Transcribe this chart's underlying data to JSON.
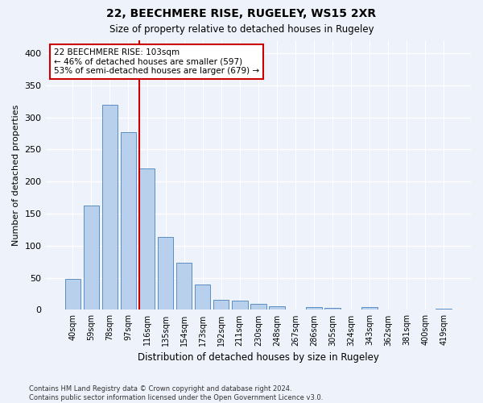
{
  "title_line1": "22, BEECHMERE RISE, RUGELEY, WS15 2XR",
  "title_line2": "Size of property relative to detached houses in Rugeley",
  "xlabel": "Distribution of detached houses by size in Rugeley",
  "ylabel": "Number of detached properties",
  "categories": [
    "40sqm",
    "59sqm",
    "78sqm",
    "97sqm",
    "116sqm",
    "135sqm",
    "154sqm",
    "173sqm",
    "192sqm",
    "211sqm",
    "230sqm",
    "248sqm",
    "267sqm",
    "286sqm",
    "305sqm",
    "324sqm",
    "343sqm",
    "362sqm",
    "381sqm",
    "400sqm",
    "419sqm"
  ],
  "values": [
    48,
    163,
    320,
    277,
    220,
    113,
    73,
    40,
    15,
    14,
    9,
    6,
    0,
    4,
    3,
    0,
    4,
    0,
    0,
    0,
    2
  ],
  "bar_color": "#b8d0eb",
  "bar_edge_color": "#5a8fc4",
  "property_line_bar_index": 4,
  "annotation_text": "22 BEECHMERE RISE: 103sqm\n← 46% of detached houses are smaller (597)\n53% of semi-detached houses are larger (679) →",
  "annotation_box_color": "#ffffff",
  "annotation_box_edge_color": "#cc0000",
  "line_color": "#cc0000",
  "ylim": [
    0,
    420
  ],
  "yticks": [
    0,
    50,
    100,
    150,
    200,
    250,
    300,
    350,
    400
  ],
  "footer_text": "Contains HM Land Registry data © Crown copyright and database right 2024.\nContains public sector information licensed under the Open Government Licence v3.0.",
  "background_color": "#eef2fa",
  "grid_color": "#ffffff"
}
